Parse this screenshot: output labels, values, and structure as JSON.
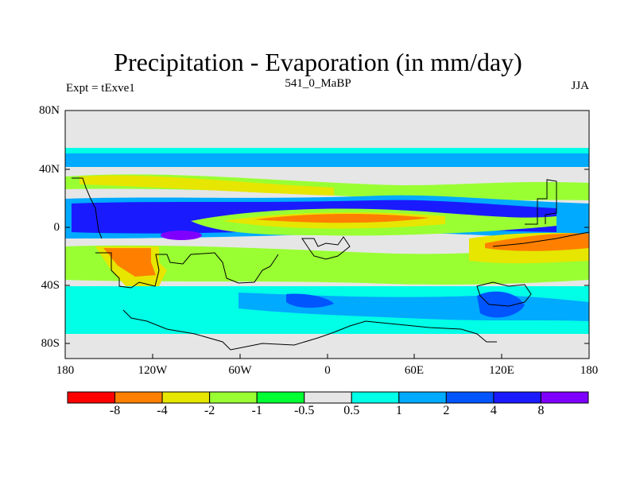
{
  "header": {
    "title": "Precipitation - Evaporation (in mm/day)",
    "left_label": "Expt = tExve1",
    "center_label": "541_0_MaBP",
    "right_label": "JJA"
  },
  "map": {
    "lat_ticks": [
      "80N",
      "40N",
      "0",
      "40S",
      "80S"
    ],
    "lon_ticks": [
      "180",
      "120W",
      "60W",
      "0",
      "60E",
      "120E",
      "180"
    ],
    "background_color": "#e6e6e6"
  },
  "colorbar": {
    "colors": [
      "#ff0000",
      "#ff8000",
      "#e6e600",
      "#99ff33",
      "#00ff33",
      "#e6e6e6",
      "#00ffe6",
      "#00aaff",
      "#0055ff",
      "#1a1aff",
      "#8000ff"
    ],
    "labels": [
      "-8",
      "-4",
      "-2",
      "-1",
      "-0.5",
      "0.5",
      "1",
      "2",
      "4",
      "8"
    ]
  }
}
